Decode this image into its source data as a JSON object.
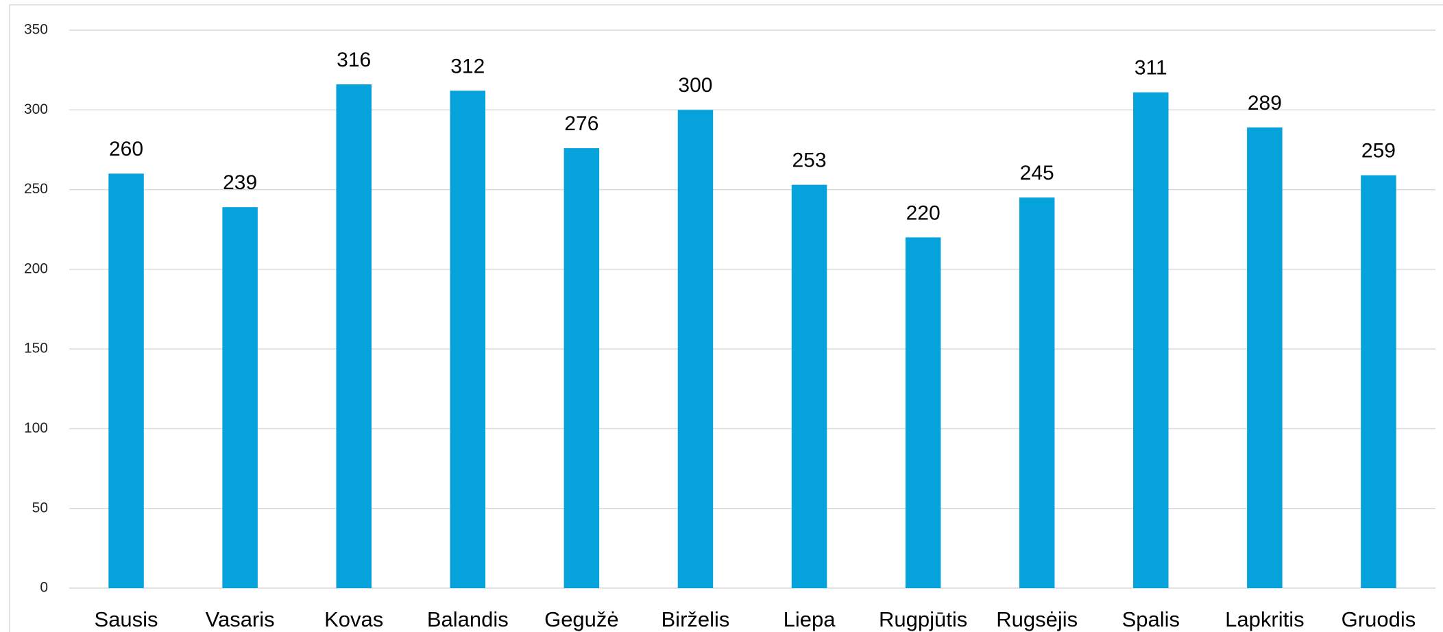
{
  "chart_data": {
    "type": "bar",
    "categories": [
      "Sausis",
      "Vasaris",
      "Kovas",
      "Balandis",
      "Gegužė",
      "Birželis",
      "Liepa",
      "Rugpjūtis",
      "Rugsėjis",
      "Spalis",
      "Lapkritis",
      "Gruodis"
    ],
    "values": [
      260,
      239,
      316,
      312,
      276,
      300,
      253,
      220,
      245,
      311,
      289,
      259
    ],
    "color": "#06a2dc",
    "ylim": [
      0,
      350
    ],
    "yticks": [
      0,
      50,
      100,
      150,
      200,
      250,
      300,
      350
    ],
    "grid": true
  }
}
